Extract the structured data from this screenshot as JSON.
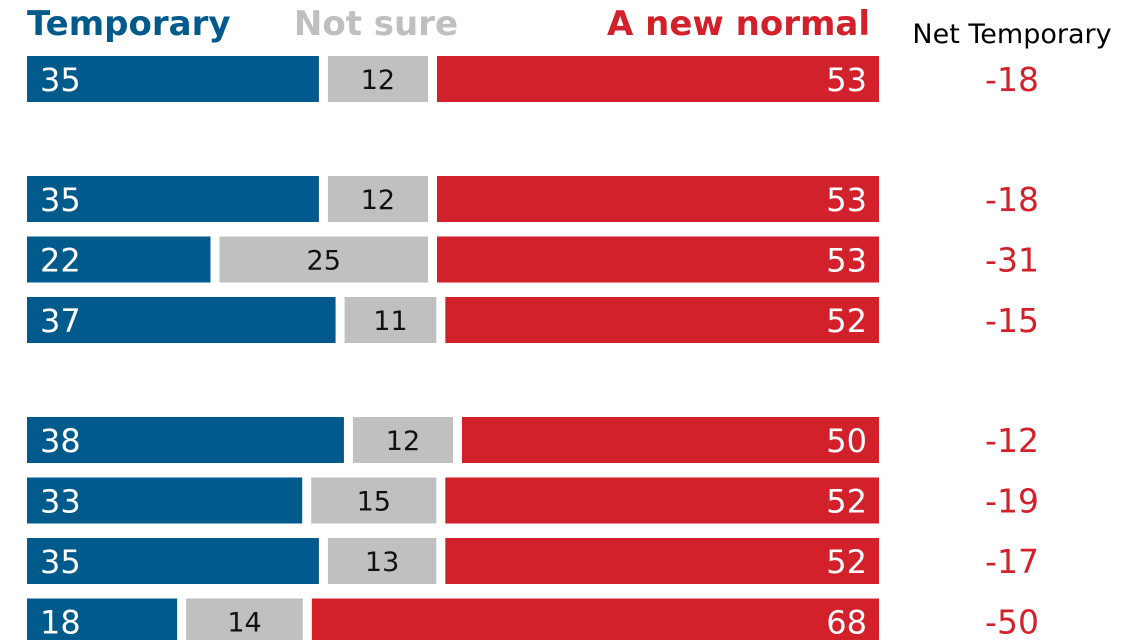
{
  "chart_data": {
    "type": "bar",
    "stacked": true,
    "orientation": "horizontal",
    "legend": {
      "temporary": "Temporary",
      "not_sure": "Not sure",
      "new_normal": "A new normal"
    },
    "net_header": "Net Temporary",
    "colors": {
      "temporary": "#005a8c",
      "not_sure": "#c0c0c0",
      "new_normal": "#d2212b",
      "net": "#d2212b",
      "legend_not_sure": "#bfbfbf"
    },
    "xlim": [
      0,
      100
    ],
    "groups": [
      {
        "rows": [
          {
            "temporary": 35,
            "not_sure": 12,
            "new_normal": 53,
            "net": "-18"
          }
        ]
      },
      {
        "rows": [
          {
            "temporary": 35,
            "not_sure": 12,
            "new_normal": 53,
            "net": "-18"
          },
          {
            "temporary": 22,
            "not_sure": 25,
            "new_normal": 53,
            "net": "-31"
          },
          {
            "temporary": 37,
            "not_sure": 11,
            "new_normal": 52,
            "net": "-15"
          }
        ]
      },
      {
        "rows": [
          {
            "temporary": 38,
            "not_sure": 12,
            "new_normal": 50,
            "net": "-12"
          },
          {
            "temporary": 33,
            "not_sure": 15,
            "new_normal": 52,
            "net": "-19"
          },
          {
            "temporary": 35,
            "not_sure": 13,
            "new_normal": 52,
            "net": "-17"
          },
          {
            "temporary": 18,
            "not_sure": 14,
            "new_normal": 68,
            "net": "-50"
          }
        ]
      }
    ]
  }
}
